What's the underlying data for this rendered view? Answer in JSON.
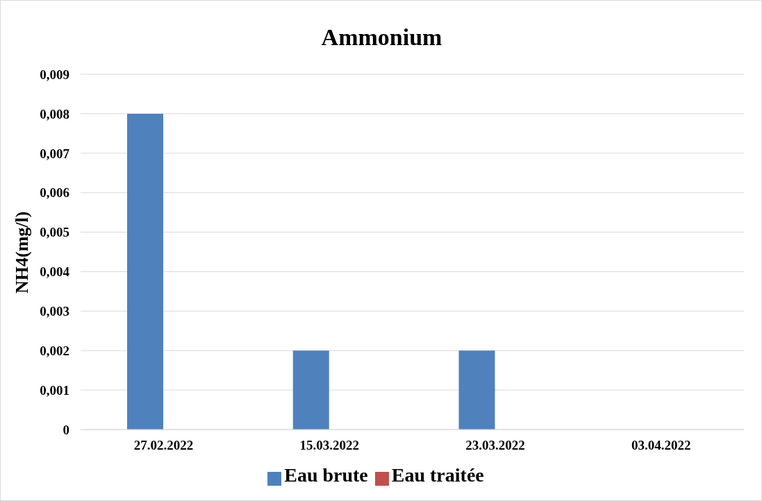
{
  "chart_data": {
    "type": "bar",
    "title": "Ammonium",
    "ylabel": "NH4(mg/l)",
    "categories": [
      "27.02.2022",
      "15.03.2022",
      "23.03.2022",
      "03.04.2022"
    ],
    "series": [
      {
        "name": "Eau brute",
        "color": "#4f81bd",
        "values": [
          0.008,
          0.002,
          0.002,
          0
        ]
      },
      {
        "name": "Eau traitée",
        "color": "#c0504d",
        "values": [
          0,
          0,
          0,
          0
        ]
      }
    ],
    "ylim": [
      0,
      0.009
    ],
    "yticks": [
      0,
      {
        "value": 0.001,
        "label": "0,001"
      },
      {
        "value": 0.002,
        "label": "0,002"
      },
      {
        "value": 0.003,
        "label": "0,003"
      },
      {
        "value": 0.004,
        "label": "0,004"
      },
      {
        "value": 0.005,
        "label": "0,005"
      },
      {
        "value": 0.006,
        "label": "0,006"
      },
      {
        "value": 0.007,
        "label": "0,007"
      },
      {
        "value": 0.008,
        "label": "0,008"
      },
      {
        "value": 0.009,
        "label": "0,009"
      }
    ],
    "grid": "y",
    "legend": "bottom"
  }
}
